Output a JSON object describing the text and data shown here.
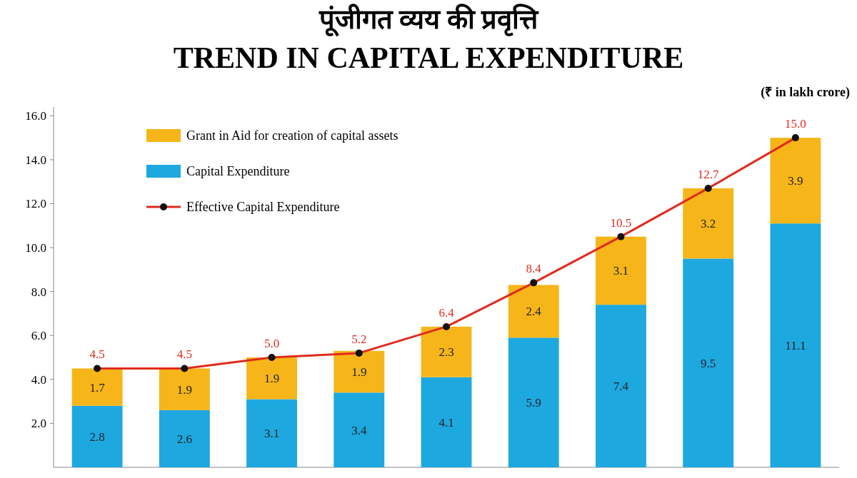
{
  "chart_data": {
    "type": "bar",
    "title": "पूंजीगत व्यय की प्रवृत्ति",
    "subtitle": "TREND IN CAPITAL EXPENDITURE",
    "annotations": [
      "(₹ in lakh crore)"
    ],
    "categories": [
      null,
      null,
      null,
      null,
      null,
      null,
      null,
      null,
      null
    ],
    "stacked": true,
    "series": [
      {
        "name": "Capital Expenditure",
        "color": "#1ea8e0",
        "values": [
          2.8,
          2.6,
          3.1,
          3.4,
          4.1,
          5.9,
          7.4,
          9.5,
          11.1
        ],
        "value_labels": [
          "2.8",
          "2.6",
          "3.1",
          "3.4",
          "4.1",
          "5.9",
          "7.4",
          "9.5",
          "11.1"
        ]
      },
      {
        "name": "Grant in Aid for creation of capital assets",
        "color": "#f6b519",
        "values": [
          1.7,
          1.9,
          1.9,
          1.9,
          2.3,
          2.4,
          3.1,
          3.2,
          3.9
        ],
        "value_labels": [
          "1.7",
          "1.9",
          "1.9",
          "1.9",
          "2.3",
          "2.4",
          "3.1",
          "3.2",
          "3.9"
        ]
      },
      {
        "name": "Effective Capital Expenditure",
        "type": "line",
        "color": "#e02b1c",
        "values": [
          4.5,
          4.5,
          5.0,
          5.2,
          6.4,
          8.4,
          10.5,
          12.7,
          15.0
        ],
        "value_labels": [
          "4.5",
          "4.5",
          "5.0",
          "5.2",
          "6.4",
          "8.4",
          "10.5",
          "12.7",
          "15.0"
        ]
      }
    ],
    "ylim": [
      0,
      16.4
    ],
    "yticks": [
      {
        "value": 2,
        "label": "2.0"
      },
      {
        "value": 4,
        "label": "4.0"
      },
      {
        "value": 6,
        "label": "6.0"
      },
      {
        "value": 8,
        "label": "8.0"
      },
      {
        "value": 10,
        "label": "10.0"
      },
      {
        "value": 12,
        "label": "12.0"
      },
      {
        "value": 14,
        "label": "14.0"
      },
      {
        "value": 16,
        "label": "16.0"
      }
    ],
    "tick_labels": "y",
    "marker": "circle",
    "legend": "top left"
  }
}
